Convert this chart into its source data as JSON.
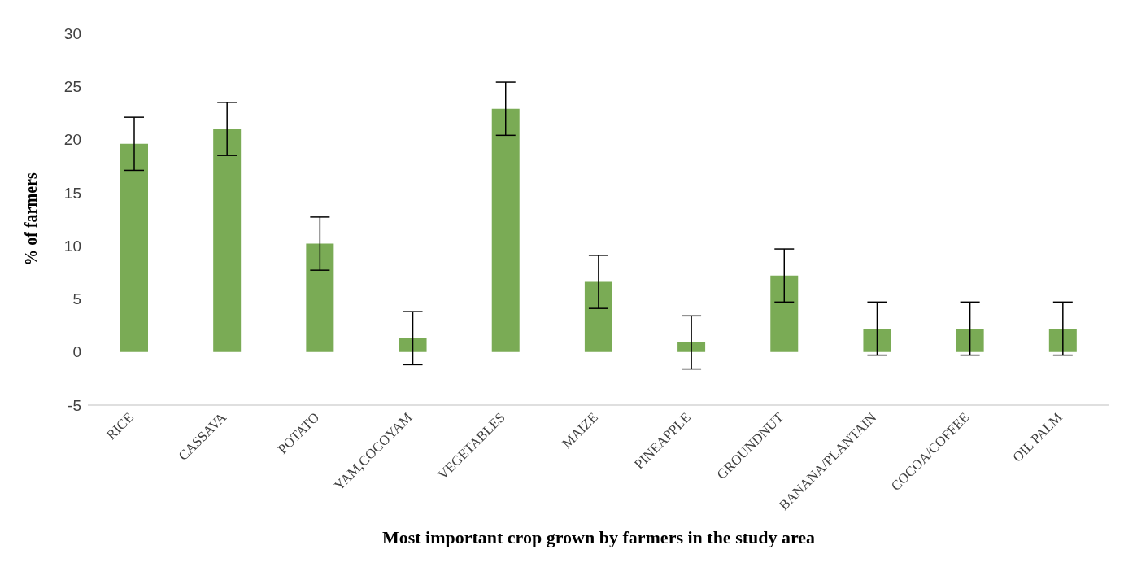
{
  "chart_data": {
    "type": "bar",
    "xlabel": "Most important crop grown by farmers in the study area",
    "ylabel": "% of farmers",
    "categories": [
      "RICE",
      "CASSAVA",
      "POTATO",
      "YAM,COCOYAM",
      "VEGETABLES",
      "MAIZE",
      "PINEAPPLE",
      "GROUNDNUT",
      "BANANA/PLANTAIN",
      "COCOA/COFFEE",
      "OIL PALM"
    ],
    "values": [
      19.6,
      21,
      10.2,
      1.3,
      22.9,
      6.6,
      0.9,
      7.2,
      2.2,
      2.2,
      2.2
    ],
    "errors": [
      2.5,
      2.5,
      2.5,
      2.5,
      2.5,
      2.5,
      2.5,
      2.5,
      2.5,
      2.5,
      2.5
    ],
    "color": "#7aab55",
    "ylim": [
      -5,
      30
    ],
    "yticks": [
      -5,
      0,
      5,
      10,
      15,
      20,
      25,
      30
    ],
    "grid": false
  }
}
